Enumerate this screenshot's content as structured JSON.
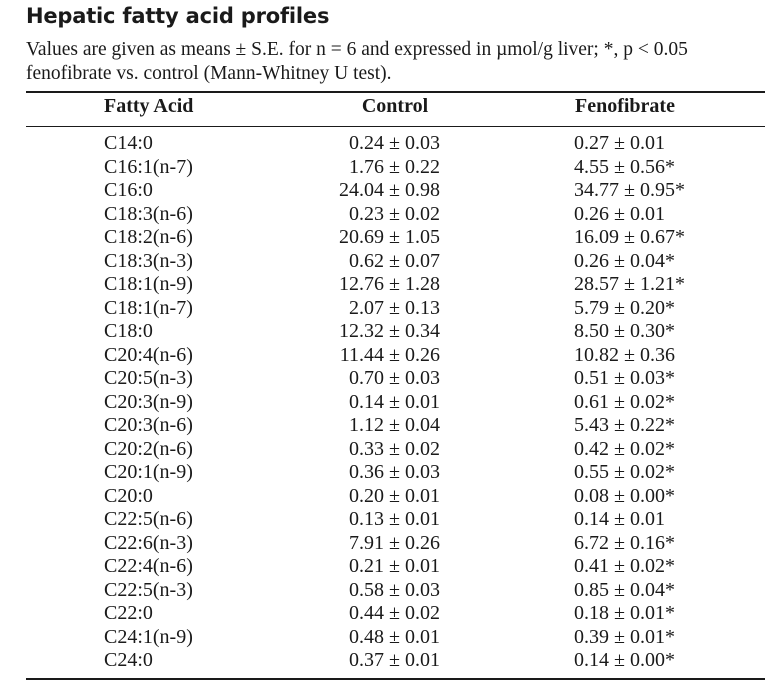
{
  "title": "Hepatic fatty acid profiles",
  "caption": {
    "line1": "Values are given as means ± S.E. for n = 6 and expressed in µmol/g liver; *, p < 0.05",
    "line2": "fenofibrate vs. control (Mann-Whitney U test)."
  },
  "headers": {
    "fatty_acid": "Fatty Acid",
    "control": "Control",
    "fenofibrate": "Fenofibrate"
  },
  "rows": [
    {
      "acid": "C14:0",
      "control": "0.24 ± 0.03",
      "fenofibrate": "0.27 ± 0.01"
    },
    {
      "acid": "C16:1(n-7)",
      "control": "1.76 ± 0.22",
      "fenofibrate": "4.55 ± 0.56*"
    },
    {
      "acid": "C16:0",
      "control": "24.04 ± 0.98",
      "fenofibrate": "34.77 ± 0.95*"
    },
    {
      "acid": "C18:3(n-6)",
      "control": "0.23 ± 0.02",
      "fenofibrate": "0.26 ± 0.01"
    },
    {
      "acid": "C18:2(n-6)",
      "control": "20.69 ± 1.05",
      "fenofibrate": "16.09 ± 0.67*"
    },
    {
      "acid": "C18:3(n-3)",
      "control": "0.62 ± 0.07",
      "fenofibrate": "0.26 ± 0.04*"
    },
    {
      "acid": "C18:1(n-9)",
      "control": "12.76 ± 1.28",
      "fenofibrate": "28.57 ± 1.21*"
    },
    {
      "acid": "C18:1(n-7)",
      "control": "2.07 ± 0.13",
      "fenofibrate": "5.79 ± 0.20*"
    },
    {
      "acid": "C18:0",
      "control": "12.32 ± 0.34",
      "fenofibrate": "8.50 ± 0.30*"
    },
    {
      "acid": "C20:4(n-6)",
      "control": "11.44 ± 0.26",
      "fenofibrate": "10.82 ± 0.36"
    },
    {
      "acid": "C20:5(n-3)",
      "control": "0.70 ± 0.03",
      "fenofibrate": "0.51 ± 0.03*"
    },
    {
      "acid": "C20:3(n-9)",
      "control": "0.14 ± 0.01",
      "fenofibrate": "0.61 ± 0.02*"
    },
    {
      "acid": "C20:3(n-6)",
      "control": "1.12 ± 0.04",
      "fenofibrate": "5.43 ± 0.22*"
    },
    {
      "acid": "C20:2(n-6)",
      "control": "0.33 ± 0.02",
      "fenofibrate": "0.42 ± 0.02*"
    },
    {
      "acid": "C20:1(n-9)",
      "control": "0.36 ± 0.03",
      "fenofibrate": "0.55 ± 0.02*"
    },
    {
      "acid": "C20:0",
      "control": "0.20 ± 0.01",
      "fenofibrate": "0.08 ± 0.00*"
    },
    {
      "acid": "C22:5(n-6)",
      "control": "0.13 ± 0.01",
      "fenofibrate": "0.14 ± 0.01"
    },
    {
      "acid": "C22:6(n-3)",
      "control": "7.91 ± 0.26",
      "fenofibrate": "6.72 ± 0.16*"
    },
    {
      "acid": "C22:4(n-6)",
      "control": "0.21 ± 0.01",
      "fenofibrate": "0.41 ± 0.02*"
    },
    {
      "acid": "C22:5(n-3)",
      "control": "0.58 ± 0.03",
      "fenofibrate": "0.85 ± 0.04*"
    },
    {
      "acid": "C22:0",
      "control": "0.44 ± 0.02",
      "fenofibrate": "0.18 ± 0.01*"
    },
    {
      "acid": "C24:1(n-9)",
      "control": "0.48 ± 0.01",
      "fenofibrate": "0.39 ± 0.01*"
    },
    {
      "acid": "C24:0",
      "control": "0.37 ± 0.01",
      "fenofibrate": "0.14 ± 0.00*"
    }
  ]
}
